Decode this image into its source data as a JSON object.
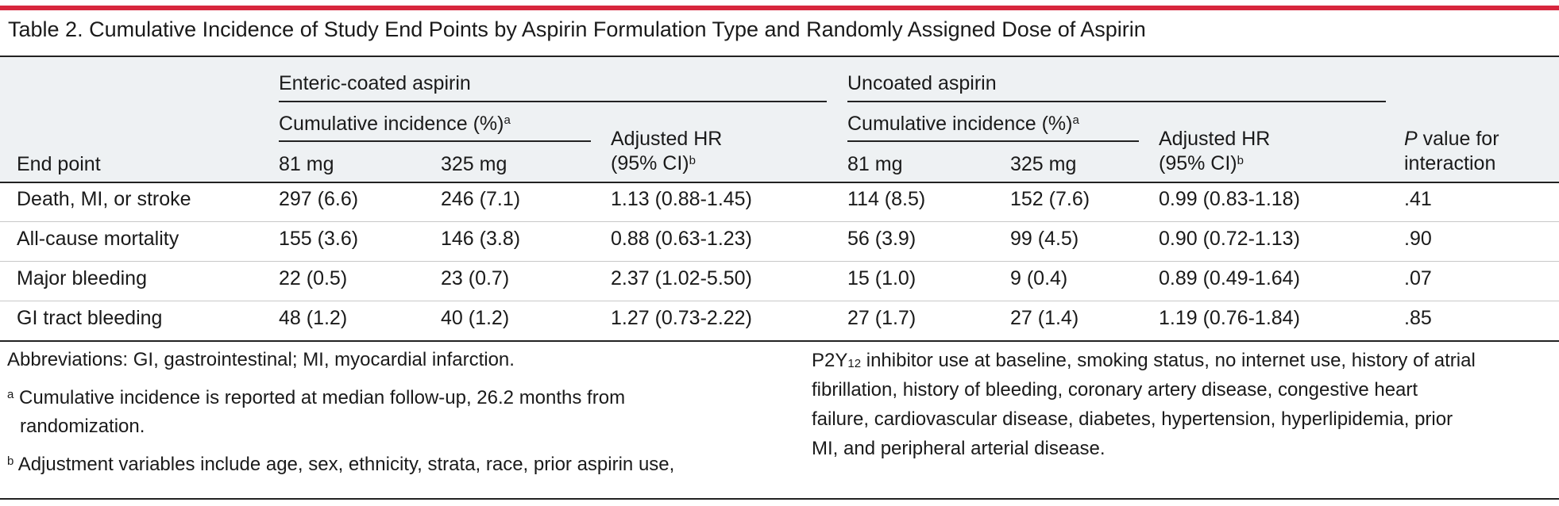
{
  "accent_color": "#d7263d",
  "title": "Table 2. Cumulative Incidence of Study End Points by Aspirin Formulation Type and Randomly Assigned Dose of Aspirin",
  "header": {
    "group_enteric": "Enteric-coated aspirin",
    "group_uncoated": "Uncoated aspirin",
    "cumulative_incidence": "Cumulative incidence (%)",
    "cumulative_sup": "a",
    "adjusted_hr_line1": "Adjusted HR",
    "adjusted_hr_line2": "(95% CI)",
    "adjusted_hr_sup": "b",
    "dose_81": "81 mg",
    "dose_325": "325 mg",
    "end_point": "End point",
    "p_value_italic": "P",
    "p_value_line1_rest": " value for",
    "p_value_line2": "interaction"
  },
  "rows": [
    {
      "end_point": "Death, MI, or stroke",
      "ec_81": "297 (6.6)",
      "ec_325": "246 (7.1)",
      "ec_hr": "1.13 (0.88-1.45)",
      "uc_81": "114 (8.5)",
      "uc_325": "152 (7.6)",
      "uc_hr": "0.99 (0.83-1.18)",
      "p": ".41"
    },
    {
      "end_point": "All-cause mortality",
      "ec_81": "155 (3.6)",
      "ec_325": "146 (3.8)",
      "ec_hr": "0.88 (0.63-1.23)",
      "uc_81": "56 (3.9)",
      "uc_325": "99 (4.5)",
      "uc_hr": "0.90 (0.72-1.13)",
      "p": ".90"
    },
    {
      "end_point": "Major bleeding",
      "ec_81": "22 (0.5)",
      "ec_325": "23 (0.7)",
      "ec_hr": "2.37 (1.02-5.50)",
      "uc_81": "15 (1.0)",
      "uc_325": "9 (0.4)",
      "uc_hr": "0.89 (0.49-1.64)",
      "p": ".07"
    },
    {
      "end_point": "GI tract bleeding",
      "ec_81": "48 (1.2)",
      "ec_325": "40 (1.2)",
      "ec_hr": "1.27 (0.73-2.22)",
      "uc_81": "27 (1.7)",
      "uc_325": "27 (1.4)",
      "uc_hr": "1.19 (0.76-1.84)",
      "p": ".85"
    }
  ],
  "footnotes": {
    "abbreviations": "Abbreviations: GI, gastrointestinal; MI, myocardial infarction.",
    "a_marker": "a",
    "a_line1": "Cumulative incidence is reported at median follow-up, 26.2 months from",
    "a_line2": "randomization.",
    "b_marker": "b",
    "b_line1": "Adjustment variables include age, sex, ethnicity, strata, race, prior aspirin use,",
    "right_p2y": "P2Y",
    "right_sub": "12",
    "right_line1_rest": " inhibitor use at baseline, smoking status, no internet use, history of atrial",
    "right_line2": "fibrillation, history of bleeding, coronary artery disease, congestive heart",
    "right_line3": "failure, cardiovascular disease, diabetes, hypertension, hyperlipidemia, prior",
    "right_line4": "MI, and peripheral arterial disease."
  }
}
